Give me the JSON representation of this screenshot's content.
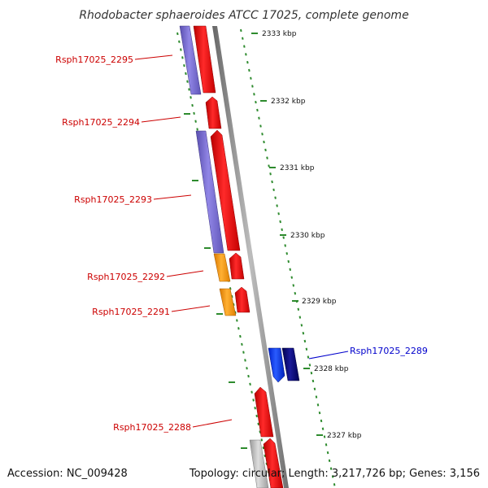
{
  "title": "Rhodobacter sphaeroides ATCC 17025, complete genome",
  "accession": "Accession: NC_009428",
  "summary": "Topology: circular; Length: 3,217,726 bp; Genes: 3,156",
  "colors": {
    "backbone": "#8a8a8a",
    "tick": "#2e8b2e",
    "label_red": "#cc0000",
    "label_blue": "#0000cc",
    "gene_red": "#ee0000",
    "gene_purple": "#7b6fd6",
    "gene_orange": "#ff9900",
    "gene_blue": "#0033ff",
    "gene_navy": "#000077",
    "gene_gray": "#bbbbbb"
  },
  "ticks": [
    {
      "label": "2333 kbp"
    },
    {
      "label": "2332 kbp"
    },
    {
      "label": "2331 kbp"
    },
    {
      "label": "2330 kbp"
    },
    {
      "label": "2329 kbp"
    },
    {
      "label": "2328 kbp"
    },
    {
      "label": "2327 kbp"
    }
  ],
  "gene_labels": [
    {
      "id": "rsph17025-2295",
      "text": "Rsph17025_2295",
      "color": "red"
    },
    {
      "id": "rsph17025-2294",
      "text": "Rsph17025_2294",
      "color": "red"
    },
    {
      "id": "rsph17025-2293",
      "text": "Rsph17025_2293",
      "color": "red"
    },
    {
      "id": "rsph17025-2292",
      "text": "Rsph17025_2292",
      "color": "red"
    },
    {
      "id": "rsph17025-2291",
      "text": "Rsph17025_2291",
      "color": "red"
    },
    {
      "id": "rsph17025-2289",
      "text": "Rsph17025_2289",
      "color": "blue"
    },
    {
      "id": "rsph17025-2288",
      "text": "Rsph17025_2288",
      "color": "red"
    }
  ]
}
